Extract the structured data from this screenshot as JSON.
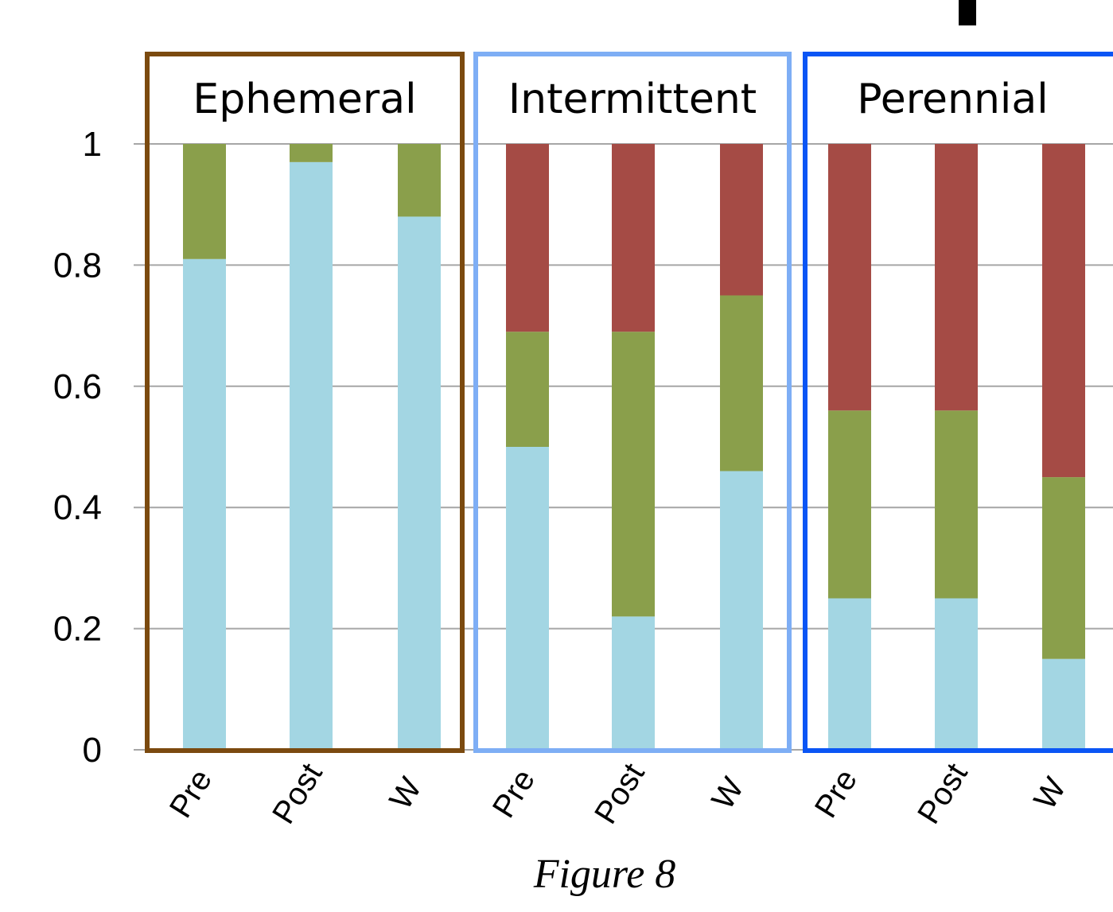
{
  "caption": "Figure 8",
  "colors": {
    "light_blue": "#a3d6e3",
    "green": "#8a9f4b",
    "red": "#a54b45",
    "ephemeral_frame": "#7b4a0f",
    "intermittent_frame": "#7eaef5",
    "perennial_frame": "#0a55f5",
    "grid": "#a6a6a6"
  },
  "chart_data": {
    "type": "bar",
    "stacked": true,
    "ylim": [
      0,
      1
    ],
    "yticks": [
      "0",
      "0.2",
      "0.4",
      "0.6",
      "0.8",
      "1"
    ],
    "grid": "horizontal",
    "groups": [
      {
        "name": "Ephemeral",
        "categories": [
          "Pre",
          "Post",
          "W"
        ],
        "series": [
          {
            "color": "light_blue",
            "values": [
              0.81,
              0.97,
              0.88
            ]
          },
          {
            "color": "green",
            "values": [
              0.19,
              0.03,
              0.12
            ]
          },
          {
            "color": "red",
            "values": [
              0,
              0,
              0
            ]
          }
        ]
      },
      {
        "name": "Intermittent",
        "categories": [
          "Pre",
          "Post",
          "W"
        ],
        "series": [
          {
            "color": "light_blue",
            "values": [
              0.5,
              0.22,
              0.46
            ]
          },
          {
            "color": "green",
            "values": [
              0.19,
              0.47,
              0.29
            ]
          },
          {
            "color": "red",
            "values": [
              0.31,
              0.31,
              0.25
            ]
          }
        ]
      },
      {
        "name": "Perennial",
        "categories": [
          "Pre",
          "Post",
          "W"
        ],
        "series": [
          {
            "color": "light_blue",
            "values": [
              0.25,
              0.25,
              0.15
            ]
          },
          {
            "color": "green",
            "values": [
              0.31,
              0.31,
              0.3
            ]
          },
          {
            "color": "red",
            "values": [
              0.44,
              0.44,
              0.55
            ]
          }
        ]
      }
    ]
  }
}
